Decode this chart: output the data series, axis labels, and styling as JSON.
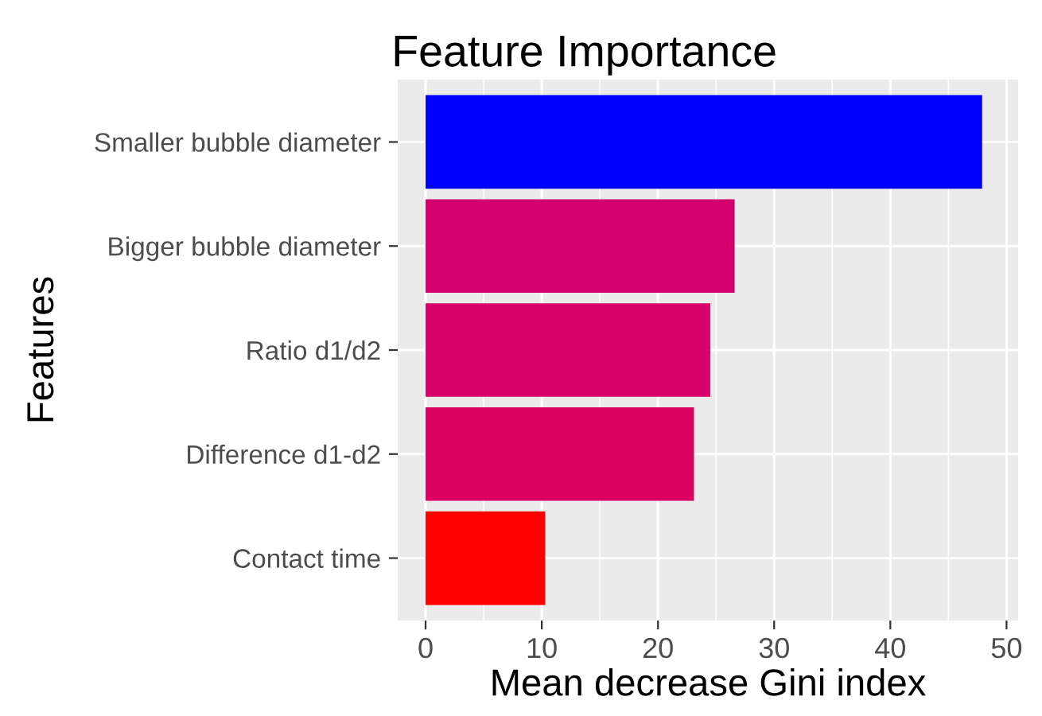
{
  "chart_data": {
    "type": "bar",
    "orientation": "horizontal",
    "title": "Feature Importance",
    "xlabel": "Mean decrease Gini index",
    "ylabel": "Features",
    "categories": [
      "Smaller bubble diameter",
      "Bigger bubble diameter",
      "Ratio d1/d2",
      "Difference d1-d2",
      "Contact time"
    ],
    "values": [
      47.9,
      26.6,
      24.5,
      23.1,
      10.3
    ],
    "colors": [
      "#0000ff",
      "#d4006e",
      "#d8006a",
      "#dc0060",
      "#ff0000"
    ],
    "xlim": [
      -2.4,
      51
    ],
    "xticks": [
      0,
      10,
      20,
      30,
      40,
      50
    ],
    "grid": true
  }
}
